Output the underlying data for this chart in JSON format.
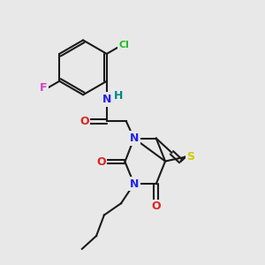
{
  "bg": "#e8e8e8",
  "bond_color": "#1a1a1a",
  "lw": 1.5,
  "atom_colors": {
    "Cl": "#22bb22",
    "F": "#cc44cc",
    "N": "#2222ee",
    "O": "#dd2222",
    "S": "#cccc00",
    "H": "#008888",
    "C": "#111111"
  },
  "figsize": [
    3.0,
    3.0
  ],
  "dpi": 100
}
